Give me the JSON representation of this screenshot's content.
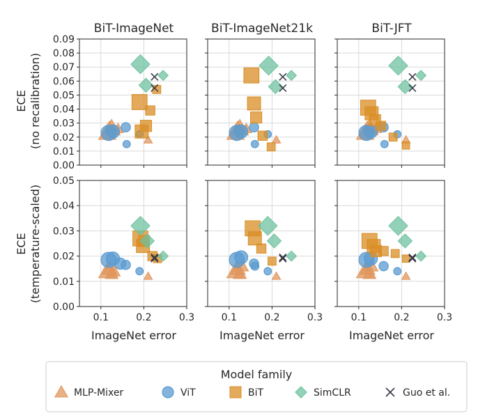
{
  "panel_titles": [
    "BiT-ImageNet",
    "BiT-ImageNet21k",
    "BiT-JFT"
  ],
  "row_labels": [
    {
      "line1": "ECE",
      "line2": "(no recalibration)"
    },
    {
      "line1": "ECE",
      "line2": "(temperature-scaled)"
    }
  ],
  "xlabel": "ImageNet error",
  "legend": {
    "title": "Model family",
    "entries": [
      "MLP-Mixer",
      "ViT",
      "BiT",
      "SimCLR",
      "Guo et al."
    ]
  },
  "colors": {
    "MLP-Mixer": "#e0965c",
    "ViT": "#5b9bd0",
    "BiT": "#d98e26",
    "SimCLR": "#6fc2a0",
    "Guo et al.": "#3a3a48"
  },
  "chart_data": [
    {
      "type": "scatter",
      "panel": "BiT-ImageNet",
      "row": 0,
      "x_ticks": [
        "0.1",
        "0.2",
        "0.3"
      ],
      "xlim": [
        0.05,
        0.3
      ],
      "y_ticks": [
        "0.00",
        "0.01",
        "0.02",
        "0.03",
        "0.04",
        "0.05",
        "0.06",
        "0.07",
        "0.08",
        "0.09"
      ],
      "ylim": [
        0,
        0.09
      ],
      "grid": true,
      "series": [
        {
          "name": "MLP-Mixer",
          "marker": "triangle",
          "points": [
            [
              0.115,
              0.023,
              3
            ],
            [
              0.12,
              0.026,
              2.5
            ],
            [
              0.125,
              0.028,
              2
            ],
            [
              0.13,
              0.025,
              2
            ],
            [
              0.14,
              0.026,
              1.5
            ],
            [
              0.21,
              0.018,
              1
            ]
          ]
        },
        {
          "name": "ViT",
          "marker": "circle",
          "points": [
            [
              0.118,
              0.023,
              3
            ],
            [
              0.128,
              0.024,
              2.5
            ],
            [
              0.158,
              0.027,
              1.5
            ],
            [
              0.16,
              0.015,
              1
            ],
            [
              0.19,
              0.022,
              1
            ]
          ]
        },
        {
          "name": "BiT",
          "marker": "square",
          "points": [
            [
              0.19,
              0.045,
              3
            ],
            [
              0.195,
              0.024,
              2.5
            ],
            [
              0.205,
              0.028,
              2
            ],
            [
              0.215,
              0.039,
              1.5
            ],
            [
              0.23,
              0.054,
              1.2
            ]
          ]
        },
        {
          "name": "SimCLR",
          "marker": "diamond",
          "points": [
            [
              0.192,
              0.072,
              3
            ],
            [
              0.205,
              0.057,
              2
            ],
            [
              0.245,
              0.064,
              1.2
            ]
          ]
        },
        {
          "name": "Guo et al.",
          "marker": "x",
          "points": [
            [
              0.225,
              0.063,
              1
            ],
            [
              0.225,
              0.055,
              1
            ]
          ]
        }
      ]
    },
    {
      "type": "scatter",
      "panel": "BiT-ImageNet21k",
      "row": 0,
      "x_ticks": [
        "0.1",
        "0.2",
        "0.3"
      ],
      "xlim": [
        0.05,
        0.3
      ],
      "ylim": [
        0,
        0.09
      ],
      "grid": true,
      "series": [
        {
          "name": "MLP-Mixer",
          "marker": "triangle",
          "points": [
            [
              0.115,
              0.023,
              3
            ],
            [
              0.12,
              0.026,
              2.5
            ],
            [
              0.125,
              0.028,
              2
            ],
            [
              0.13,
              0.025,
              2
            ],
            [
              0.14,
              0.026,
              1.5
            ],
            [
              0.21,
              0.018,
              1
            ]
          ]
        },
        {
          "name": "ViT",
          "marker": "circle",
          "points": [
            [
              0.118,
              0.023,
              3
            ],
            [
              0.128,
              0.024,
              2.5
            ],
            [
              0.158,
              0.027,
              1.5
            ],
            [
              0.16,
              0.015,
              1
            ],
            [
              0.19,
              0.022,
              1
            ]
          ]
        },
        {
          "name": "BiT",
          "marker": "square",
          "points": [
            [
              0.152,
              0.064,
              3
            ],
            [
              0.158,
              0.044,
              2.5
            ],
            [
              0.163,
              0.034,
              2
            ],
            [
              0.178,
              0.021,
              1.5
            ],
            [
              0.198,
              0.013,
              1.2
            ]
          ]
        },
        {
          "name": "SimCLR",
          "marker": "diamond",
          "points": [
            [
              0.192,
              0.071,
              3
            ],
            [
              0.208,
              0.056,
              2
            ],
            [
              0.245,
              0.064,
              1.2
            ]
          ]
        },
        {
          "name": "Guo et al.",
          "marker": "x",
          "points": [
            [
              0.225,
              0.063,
              1
            ],
            [
              0.225,
              0.055,
              1
            ]
          ]
        }
      ]
    },
    {
      "type": "scatter",
      "panel": "BiT-JFT",
      "row": 0,
      "x_ticks": [
        "0.1",
        "0.2",
        "0.3"
      ],
      "xlim": [
        0.05,
        0.3
      ],
      "ylim": [
        0,
        0.09
      ],
      "grid": true,
      "series": [
        {
          "name": "MLP-Mixer",
          "marker": "triangle",
          "points": [
            [
              0.115,
              0.023,
              3
            ],
            [
              0.12,
              0.026,
              2.5
            ],
            [
              0.125,
              0.028,
              2
            ],
            [
              0.13,
              0.025,
              2
            ],
            [
              0.14,
              0.026,
              1.5
            ],
            [
              0.21,
              0.018,
              1
            ]
          ]
        },
        {
          "name": "ViT",
          "marker": "circle",
          "points": [
            [
              0.118,
              0.023,
              3
            ],
            [
              0.128,
              0.024,
              2.5
            ],
            [
              0.158,
              0.027,
              1.5
            ],
            [
              0.16,
              0.015,
              1
            ],
            [
              0.19,
              0.022,
              1
            ]
          ]
        },
        {
          "name": "BiT",
          "marker": "square",
          "points": [
            [
              0.122,
              0.041,
              3
            ],
            [
              0.13,
              0.037,
              2.5
            ],
            [
              0.138,
              0.032,
              2
            ],
            [
              0.152,
              0.028,
              1.5
            ],
            [
              0.18,
              0.02,
              1.2
            ],
            [
              0.21,
              0.014,
              1
            ]
          ]
        },
        {
          "name": "SimCLR",
          "marker": "diamond",
          "points": [
            [
              0.192,
              0.071,
              3
            ],
            [
              0.208,
              0.056,
              2
            ],
            [
              0.245,
              0.064,
              1.2
            ]
          ]
        },
        {
          "name": "Guo et al.",
          "marker": "x",
          "points": [
            [
              0.225,
              0.063,
              1
            ],
            [
              0.225,
              0.055,
              1
            ]
          ]
        }
      ]
    },
    {
      "type": "scatter",
      "panel": "BiT-ImageNet",
      "row": 1,
      "x_ticks": [
        "0.1",
        "0.2",
        "0.3"
      ],
      "xlim": [
        0.05,
        0.3
      ],
      "y_ticks": [
        "0.00",
        "0.01",
        "0.02",
        "0.03",
        "0.04",
        "0.05"
      ],
      "ylim": [
        0,
        0.05
      ],
      "grid": true,
      "series": [
        {
          "name": "MLP-Mixer",
          "marker": "triangle",
          "points": [
            [
              0.115,
              0.014,
              3
            ],
            [
              0.12,
              0.015,
              2.5
            ],
            [
              0.125,
              0.013,
              2
            ],
            [
              0.13,
              0.014,
              2
            ],
            [
              0.21,
              0.012,
              1
            ]
          ]
        },
        {
          "name": "ViT",
          "marker": "circle",
          "points": [
            [
              0.118,
              0.0185,
              3
            ],
            [
              0.128,
              0.019,
              2.5
            ],
            [
              0.145,
              0.017,
              2
            ],
            [
              0.158,
              0.0165,
              1.5
            ],
            [
              0.19,
              0.014,
              1
            ]
          ]
        },
        {
          "name": "BiT",
          "marker": "square",
          "points": [
            [
              0.192,
              0.027,
              3
            ],
            [
              0.198,
              0.024,
              2.5
            ],
            [
              0.2,
              0.026,
              2
            ],
            [
              0.22,
              0.02,
              1.5
            ],
            [
              0.232,
              0.019,
              1.2
            ]
          ]
        },
        {
          "name": "SimCLR",
          "marker": "diamond",
          "points": [
            [
              0.192,
              0.032,
              3
            ],
            [
              0.208,
              0.026,
              2
            ],
            [
              0.245,
              0.02,
              1.2
            ]
          ]
        },
        {
          "name": "Guo et al.",
          "marker": "x",
          "points": [
            [
              0.225,
              0.019,
              1
            ],
            [
              0.225,
              0.0195,
              1
            ]
          ]
        }
      ]
    },
    {
      "type": "scatter",
      "panel": "BiT-ImageNet21k",
      "row": 1,
      "x_ticks": [
        "0.1",
        "0.2",
        "0.3"
      ],
      "xlim": [
        0.05,
        0.3
      ],
      "ylim": [
        0,
        0.05
      ],
      "grid": true,
      "series": [
        {
          "name": "MLP-Mixer",
          "marker": "triangle",
          "points": [
            [
              0.115,
              0.014,
              3
            ],
            [
              0.12,
              0.015,
              2.5
            ],
            [
              0.125,
              0.013,
              2
            ],
            [
              0.13,
              0.016,
              2
            ],
            [
              0.21,
              0.012,
              1
            ]
          ]
        },
        {
          "name": "ViT",
          "marker": "circle",
          "points": [
            [
              0.118,
              0.0185,
              3
            ],
            [
              0.128,
              0.0195,
              2.5
            ],
            [
              0.158,
              0.017,
              1.5
            ],
            [
              0.16,
              0.016,
              1.2
            ],
            [
              0.19,
              0.014,
              1
            ]
          ]
        },
        {
          "name": "BiT",
          "marker": "square",
          "points": [
            [
              0.155,
              0.031,
              3
            ],
            [
              0.16,
              0.027,
              2.5
            ],
            [
              0.175,
              0.023,
              1.5
            ],
            [
              0.2,
              0.018,
              1.2
            ]
          ]
        },
        {
          "name": "SimCLR",
          "marker": "diamond",
          "points": [
            [
              0.19,
              0.032,
              3
            ],
            [
              0.205,
              0.026,
              2
            ],
            [
              0.245,
              0.02,
              1.2
            ]
          ]
        },
        {
          "name": "Guo et al.",
          "marker": "x",
          "points": [
            [
              0.225,
              0.019,
              1
            ],
            [
              0.225,
              0.0195,
              1
            ]
          ]
        }
      ]
    },
    {
      "type": "scatter",
      "panel": "BiT-JFT",
      "row": 1,
      "x_ticks": [
        "0.1",
        "0.2",
        "0.3"
      ],
      "xlim": [
        0.05,
        0.3
      ],
      "ylim": [
        0,
        0.05
      ],
      "grid": true,
      "series": [
        {
          "name": "MLP-Mixer",
          "marker": "triangle",
          "points": [
            [
              0.115,
              0.014,
              3
            ],
            [
              0.12,
              0.015,
              2.5
            ],
            [
              0.125,
              0.013,
              2
            ],
            [
              0.13,
              0.016,
              2
            ],
            [
              0.21,
              0.012,
              1
            ]
          ]
        },
        {
          "name": "ViT",
          "marker": "circle",
          "points": [
            [
              0.118,
              0.0185,
              3
            ],
            [
              0.128,
              0.019,
              2.5
            ],
            [
              0.158,
              0.016,
              1.5
            ],
            [
              0.19,
              0.014,
              1
            ]
          ]
        },
        {
          "name": "BiT",
          "marker": "square",
          "points": [
            [
              0.125,
              0.026,
              3
            ],
            [
              0.135,
              0.024,
              2.5
            ],
            [
              0.14,
              0.022,
              2
            ],
            [
              0.158,
              0.022,
              1.5
            ],
            [
              0.185,
              0.021,
              1.2
            ],
            [
              0.21,
              0.019,
              1
            ]
          ]
        },
        {
          "name": "SimCLR",
          "marker": "diamond",
          "points": [
            [
              0.192,
              0.032,
              3
            ],
            [
              0.208,
              0.026,
              2
            ],
            [
              0.245,
              0.02,
              1.2
            ]
          ]
        },
        {
          "name": "Guo et al.",
          "marker": "x",
          "points": [
            [
              0.225,
              0.019,
              1
            ],
            [
              0.225,
              0.0195,
              1
            ]
          ]
        }
      ]
    }
  ]
}
